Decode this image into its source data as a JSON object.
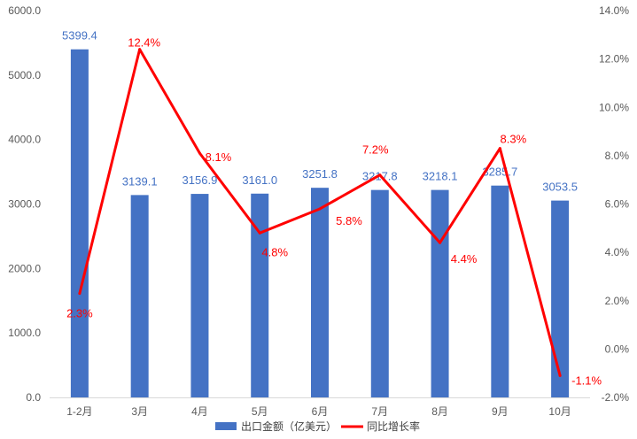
{
  "chart_data": {
    "type": "bar",
    "categories": [
      "1-2月",
      "3月",
      "4月",
      "5月",
      "6月",
      "7月",
      "8月",
      "9月",
      "10月"
    ],
    "series": [
      {
        "name": "出口金额（亿美元）",
        "type": "bar",
        "axis": "left",
        "color": "#4472C4",
        "values": [
          5399.4,
          3139.1,
          3156.9,
          3161.0,
          3251.8,
          3217.8,
          3218.1,
          3285.7,
          3053.5
        ],
        "labels": [
          "5399.4",
          "3139.1",
          "3156.9",
          "3161.0",
          "3251.8",
          "3217.8",
          "3218.1",
          "3285.7",
          "3053.5"
        ]
      },
      {
        "name": "同比增长率",
        "type": "line",
        "axis": "right",
        "color": "#FF0000",
        "values": [
          2.3,
          12.4,
          8.1,
          4.8,
          5.8,
          7.2,
          4.4,
          8.3,
          -1.1
        ],
        "labels": [
          "2.3%",
          "12.4%",
          "8.1%",
          "4.8%",
          "5.8%",
          "7.2%",
          "4.4%",
          "8.3%",
          "-1.1%"
        ]
      }
    ],
    "y_left": {
      "min": 0,
      "max": 6000,
      "ticks": [
        0,
        1000,
        2000,
        3000,
        4000,
        5000,
        6000
      ],
      "tick_labels": [
        "0.0",
        "1000.0",
        "2000.0",
        "3000.0",
        "4000.0",
        "5000.0",
        "6000.0"
      ]
    },
    "y_right": {
      "min": -2,
      "max": 14,
      "ticks": [
        -2,
        0,
        2,
        4,
        6,
        8,
        10,
        12,
        14
      ],
      "tick_labels": [
        "-2.0%",
        "0.0%",
        "2.0%",
        "4.0%",
        "6.0%",
        "8.0%",
        "10.0%",
        "12.0%",
        "14.0%"
      ]
    },
    "grid": false,
    "legend": "bottom"
  }
}
